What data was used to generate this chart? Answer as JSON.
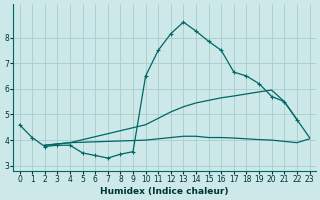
{
  "xlabel": "Humidex (Indice chaleur)",
  "bg_color": "#cce8e8",
  "grid_color": "#aacccc",
  "line_color": "#006666",
  "xlim": [
    -0.5,
    23.5
  ],
  "ylim": [
    2.8,
    9.3
  ],
  "yticks": [
    3,
    4,
    5,
    6,
    7,
    8
  ],
  "xtick_labels": [
    "0",
    "1",
    "2",
    "3",
    "4",
    "5",
    "6",
    "7",
    "8",
    "9",
    "10",
    "11",
    "12",
    "13",
    "14",
    "15",
    "16",
    "17",
    "18",
    "19",
    "20",
    "21",
    "22",
    "23"
  ],
  "xtick_positions": [
    0,
    1,
    2,
    3,
    4,
    5,
    6,
    7,
    8,
    9,
    10,
    11,
    12,
    13,
    14,
    15,
    16,
    17,
    18,
    19,
    20,
    21,
    22,
    23
  ],
  "series1_x": [
    0,
    1,
    2,
    3,
    4,
    5,
    6,
    7,
    8,
    9,
    10,
    11,
    12,
    13,
    14,
    15,
    16,
    17,
    18,
    19,
    20,
    21,
    22
  ],
  "series1_y": [
    4.6,
    4.1,
    3.75,
    3.8,
    3.8,
    3.5,
    3.4,
    3.3,
    3.45,
    3.55,
    6.5,
    7.5,
    8.15,
    8.6,
    8.25,
    7.85,
    7.5,
    6.65,
    6.5,
    6.2,
    5.7,
    5.5,
    4.8
  ],
  "series2_x": [
    2,
    3,
    4,
    10,
    11,
    12,
    13,
    14,
    15,
    16,
    17,
    18,
    19,
    20,
    21,
    22,
    23
  ],
  "series2_y": [
    3.8,
    3.85,
    3.9,
    4.6,
    4.85,
    5.1,
    5.3,
    5.45,
    5.55,
    5.65,
    5.72,
    5.8,
    5.88,
    5.95,
    5.5,
    4.8,
    4.1
  ],
  "series3_x": [
    2,
    3,
    4,
    10,
    11,
    12,
    13,
    14,
    15,
    16,
    17,
    18,
    19,
    20,
    21,
    22,
    23
  ],
  "series3_y": [
    3.8,
    3.85,
    3.9,
    4.0,
    4.05,
    4.1,
    4.15,
    4.15,
    4.1,
    4.1,
    4.08,
    4.05,
    4.02,
    4.0,
    3.95,
    3.9,
    4.05
  ]
}
